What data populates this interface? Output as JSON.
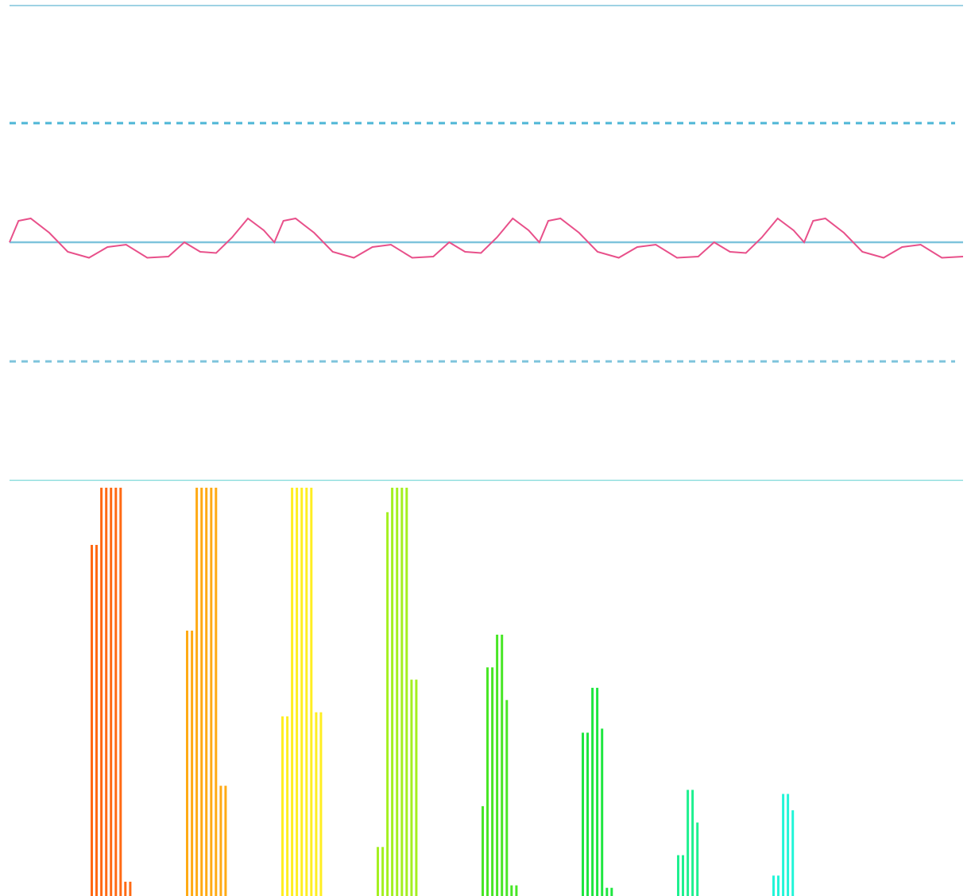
{
  "chart_data": [
    {
      "type": "line",
      "panel": "waveform",
      "ylim": [
        -1,
        1
      ],
      "grid": false,
      "reference_lines": [
        {
          "name": "upper-bound",
          "y": 0.5,
          "style": "dashed",
          "color": "#4db6d6"
        },
        {
          "name": "zero-line",
          "y": 0.0,
          "style": "solid",
          "color": "#7ec4dc"
        },
        {
          "name": "lower-bound",
          "y": -0.5,
          "style": "dashed",
          "color": "#7ec4dc"
        }
      ],
      "series": [
        {
          "color": "#e8508a",
          "period_samples": 1,
          "x": [
            0,
            0.034,
            0.08,
            0.15,
            0.22,
            0.3,
            0.37,
            0.44,
            0.52,
            0.6,
            0.66,
            0.72,
            0.78,
            0.84,
            0.9,
            0.96,
            1.0
          ],
          "y": [
            0.0,
            0.09,
            0.1,
            0.04,
            -0.04,
            -0.065,
            -0.02,
            -0.01,
            -0.065,
            -0.06,
            0.0,
            -0.04,
            -0.045,
            0.02,
            0.1,
            0.05,
            0.0
          ],
          "cycles": 3.6
        }
      ]
    },
    {
      "type": "bar",
      "panel": "spectrum",
      "ylim": [
        0,
        1
      ],
      "grid": false,
      "groups": [
        {
          "color": "#ff6a14",
          "values": [
            0.86,
            0.86,
            1.0,
            1.0,
            1.0,
            1.0,
            1.0,
            0.035,
            0.035
          ]
        },
        {
          "color": "#ffaa14",
          "values": [
            0.65,
            0.65,
            1.0,
            1.0,
            1.0,
            1.0,
            1.0,
            0.27,
            0.27
          ]
        },
        {
          "color": "#ffee22",
          "values": [
            0.44,
            0.44,
            1.0,
            1.0,
            1.0,
            1.0,
            1.0,
            0.45,
            0.45
          ]
        },
        {
          "color": "#a4f020",
          "values": [
            0.12,
            0.12,
            0.94,
            1.0,
            1.0,
            1.0,
            1.0,
            0.53,
            0.53
          ]
        },
        {
          "color": "#48e626",
          "values": [
            0.22,
            0.56,
            0.56,
            0.64,
            0.64,
            0.48,
            0.026,
            0.026
          ]
        },
        {
          "color": "#1ee640",
          "values": [
            0.4,
            0.4,
            0.51,
            0.51,
            0.41,
            0.02,
            0.02
          ]
        },
        {
          "color": "#1ef090",
          "values": [
            0.1,
            0.1,
            0.26,
            0.26,
            0.18
          ]
        },
        {
          "color": "#22f5d8",
          "values": [
            0.05,
            0.05,
            0.25,
            0.25,
            0.21
          ]
        }
      ]
    }
  ]
}
